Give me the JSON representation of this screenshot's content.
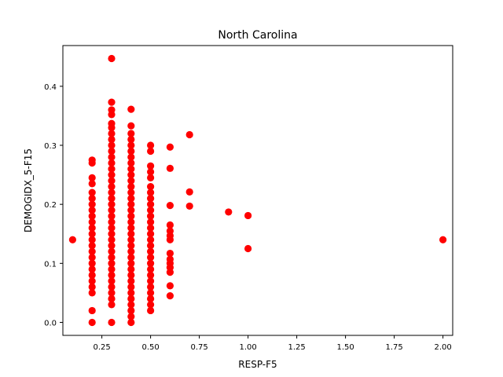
{
  "chart_data": {
    "type": "scatter",
    "title": "North Carolina",
    "xlabel": "RESP-F5",
    "ylabel": "DEMOGIDX_5-F15",
    "xlim": [
      0.05,
      2.05
    ],
    "ylim": [
      -0.022,
      0.469
    ],
    "xticks": [
      "0.25",
      "0.50",
      "0.75",
      "1.00",
      "1.25",
      "1.50",
      "1.75",
      "2.00"
    ],
    "yticks": [
      "0.0",
      "0.1",
      "0.2",
      "0.3",
      "0.4"
    ],
    "grid": false,
    "marker_color": "#ff0000",
    "series": [
      {
        "points": [
          [
            0.1,
            0.14
          ],
          [
            0.2,
            0.0
          ],
          [
            0.2,
            0.02
          ],
          [
            0.2,
            0.05
          ],
          [
            0.2,
            0.06
          ],
          [
            0.2,
            0.07
          ],
          [
            0.2,
            0.08
          ],
          [
            0.2,
            0.09
          ],
          [
            0.2,
            0.1
          ],
          [
            0.2,
            0.11
          ],
          [
            0.2,
            0.12
          ],
          [
            0.2,
            0.13
          ],
          [
            0.2,
            0.14
          ],
          [
            0.2,
            0.15
          ],
          [
            0.2,
            0.16
          ],
          [
            0.2,
            0.17
          ],
          [
            0.2,
            0.18
          ],
          [
            0.2,
            0.19
          ],
          [
            0.2,
            0.2
          ],
          [
            0.2,
            0.21
          ],
          [
            0.2,
            0.22
          ],
          [
            0.2,
            0.235
          ],
          [
            0.2,
            0.245
          ],
          [
            0.2,
            0.27
          ],
          [
            0.2,
            0.275
          ],
          [
            0.3,
            0.0
          ],
          [
            0.3,
            0.03
          ],
          [
            0.3,
            0.04
          ],
          [
            0.3,
            0.05
          ],
          [
            0.3,
            0.06
          ],
          [
            0.3,
            0.07
          ],
          [
            0.3,
            0.08
          ],
          [
            0.3,
            0.09
          ],
          [
            0.3,
            0.1
          ],
          [
            0.3,
            0.11
          ],
          [
            0.3,
            0.12
          ],
          [
            0.3,
            0.13
          ],
          [
            0.3,
            0.14
          ],
          [
            0.3,
            0.15
          ],
          [
            0.3,
            0.16
          ],
          [
            0.3,
            0.17
          ],
          [
            0.3,
            0.18
          ],
          [
            0.3,
            0.19
          ],
          [
            0.3,
            0.2
          ],
          [
            0.3,
            0.21
          ],
          [
            0.3,
            0.22
          ],
          [
            0.3,
            0.23
          ],
          [
            0.3,
            0.24
          ],
          [
            0.3,
            0.25
          ],
          [
            0.3,
            0.26
          ],
          [
            0.3,
            0.27
          ],
          [
            0.3,
            0.28
          ],
          [
            0.3,
            0.29
          ],
          [
            0.3,
            0.3
          ],
          [
            0.3,
            0.31
          ],
          [
            0.3,
            0.32
          ],
          [
            0.3,
            0.33
          ],
          [
            0.3,
            0.337
          ],
          [
            0.3,
            0.352
          ],
          [
            0.3,
            0.36
          ],
          [
            0.3,
            0.373
          ],
          [
            0.3,
            0.447
          ],
          [
            0.4,
            0.0
          ],
          [
            0.4,
            0.01
          ],
          [
            0.4,
            0.02
          ],
          [
            0.4,
            0.03
          ],
          [
            0.4,
            0.04
          ],
          [
            0.4,
            0.05
          ],
          [
            0.4,
            0.06
          ],
          [
            0.4,
            0.07
          ],
          [
            0.4,
            0.08
          ],
          [
            0.4,
            0.09
          ],
          [
            0.4,
            0.1
          ],
          [
            0.4,
            0.11
          ],
          [
            0.4,
            0.12
          ],
          [
            0.4,
            0.13
          ],
          [
            0.4,
            0.14
          ],
          [
            0.4,
            0.15
          ],
          [
            0.4,
            0.16
          ],
          [
            0.4,
            0.17
          ],
          [
            0.4,
            0.18
          ],
          [
            0.4,
            0.19
          ],
          [
            0.4,
            0.2
          ],
          [
            0.4,
            0.21
          ],
          [
            0.4,
            0.22
          ],
          [
            0.4,
            0.23
          ],
          [
            0.4,
            0.24
          ],
          [
            0.4,
            0.25
          ],
          [
            0.4,
            0.26
          ],
          [
            0.4,
            0.27
          ],
          [
            0.4,
            0.28
          ],
          [
            0.4,
            0.29
          ],
          [
            0.4,
            0.3
          ],
          [
            0.4,
            0.31
          ],
          [
            0.4,
            0.32
          ],
          [
            0.4,
            0.333
          ],
          [
            0.4,
            0.361
          ],
          [
            0.5,
            0.02
          ],
          [
            0.5,
            0.03
          ],
          [
            0.5,
            0.04
          ],
          [
            0.5,
            0.05
          ],
          [
            0.5,
            0.06
          ],
          [
            0.5,
            0.07
          ],
          [
            0.5,
            0.08
          ],
          [
            0.5,
            0.09
          ],
          [
            0.5,
            0.1
          ],
          [
            0.5,
            0.11
          ],
          [
            0.5,
            0.12
          ],
          [
            0.5,
            0.13
          ],
          [
            0.5,
            0.14
          ],
          [
            0.5,
            0.15
          ],
          [
            0.5,
            0.16
          ],
          [
            0.5,
            0.17
          ],
          [
            0.5,
            0.18
          ],
          [
            0.5,
            0.19
          ],
          [
            0.5,
            0.2
          ],
          [
            0.5,
            0.21
          ],
          [
            0.5,
            0.22
          ],
          [
            0.5,
            0.23
          ],
          [
            0.5,
            0.245
          ],
          [
            0.5,
            0.255
          ],
          [
            0.5,
            0.265
          ],
          [
            0.5,
            0.29
          ],
          [
            0.5,
            0.3
          ],
          [
            0.6,
            0.045
          ],
          [
            0.6,
            0.062
          ],
          [
            0.6,
            0.085
          ],
          [
            0.6,
            0.093
          ],
          [
            0.6,
            0.1
          ],
          [
            0.6,
            0.107
          ],
          [
            0.6,
            0.117
          ],
          [
            0.6,
            0.14
          ],
          [
            0.6,
            0.147
          ],
          [
            0.6,
            0.155
          ],
          [
            0.6,
            0.165
          ],
          [
            0.6,
            0.198
          ],
          [
            0.6,
            0.261
          ],
          [
            0.6,
            0.297
          ],
          [
            0.7,
            0.197
          ],
          [
            0.7,
            0.221
          ],
          [
            0.7,
            0.318
          ],
          [
            0.9,
            0.187
          ],
          [
            1.0,
            0.125
          ],
          [
            1.0,
            0.181
          ],
          [
            2.0,
            0.14
          ]
        ]
      }
    ]
  }
}
